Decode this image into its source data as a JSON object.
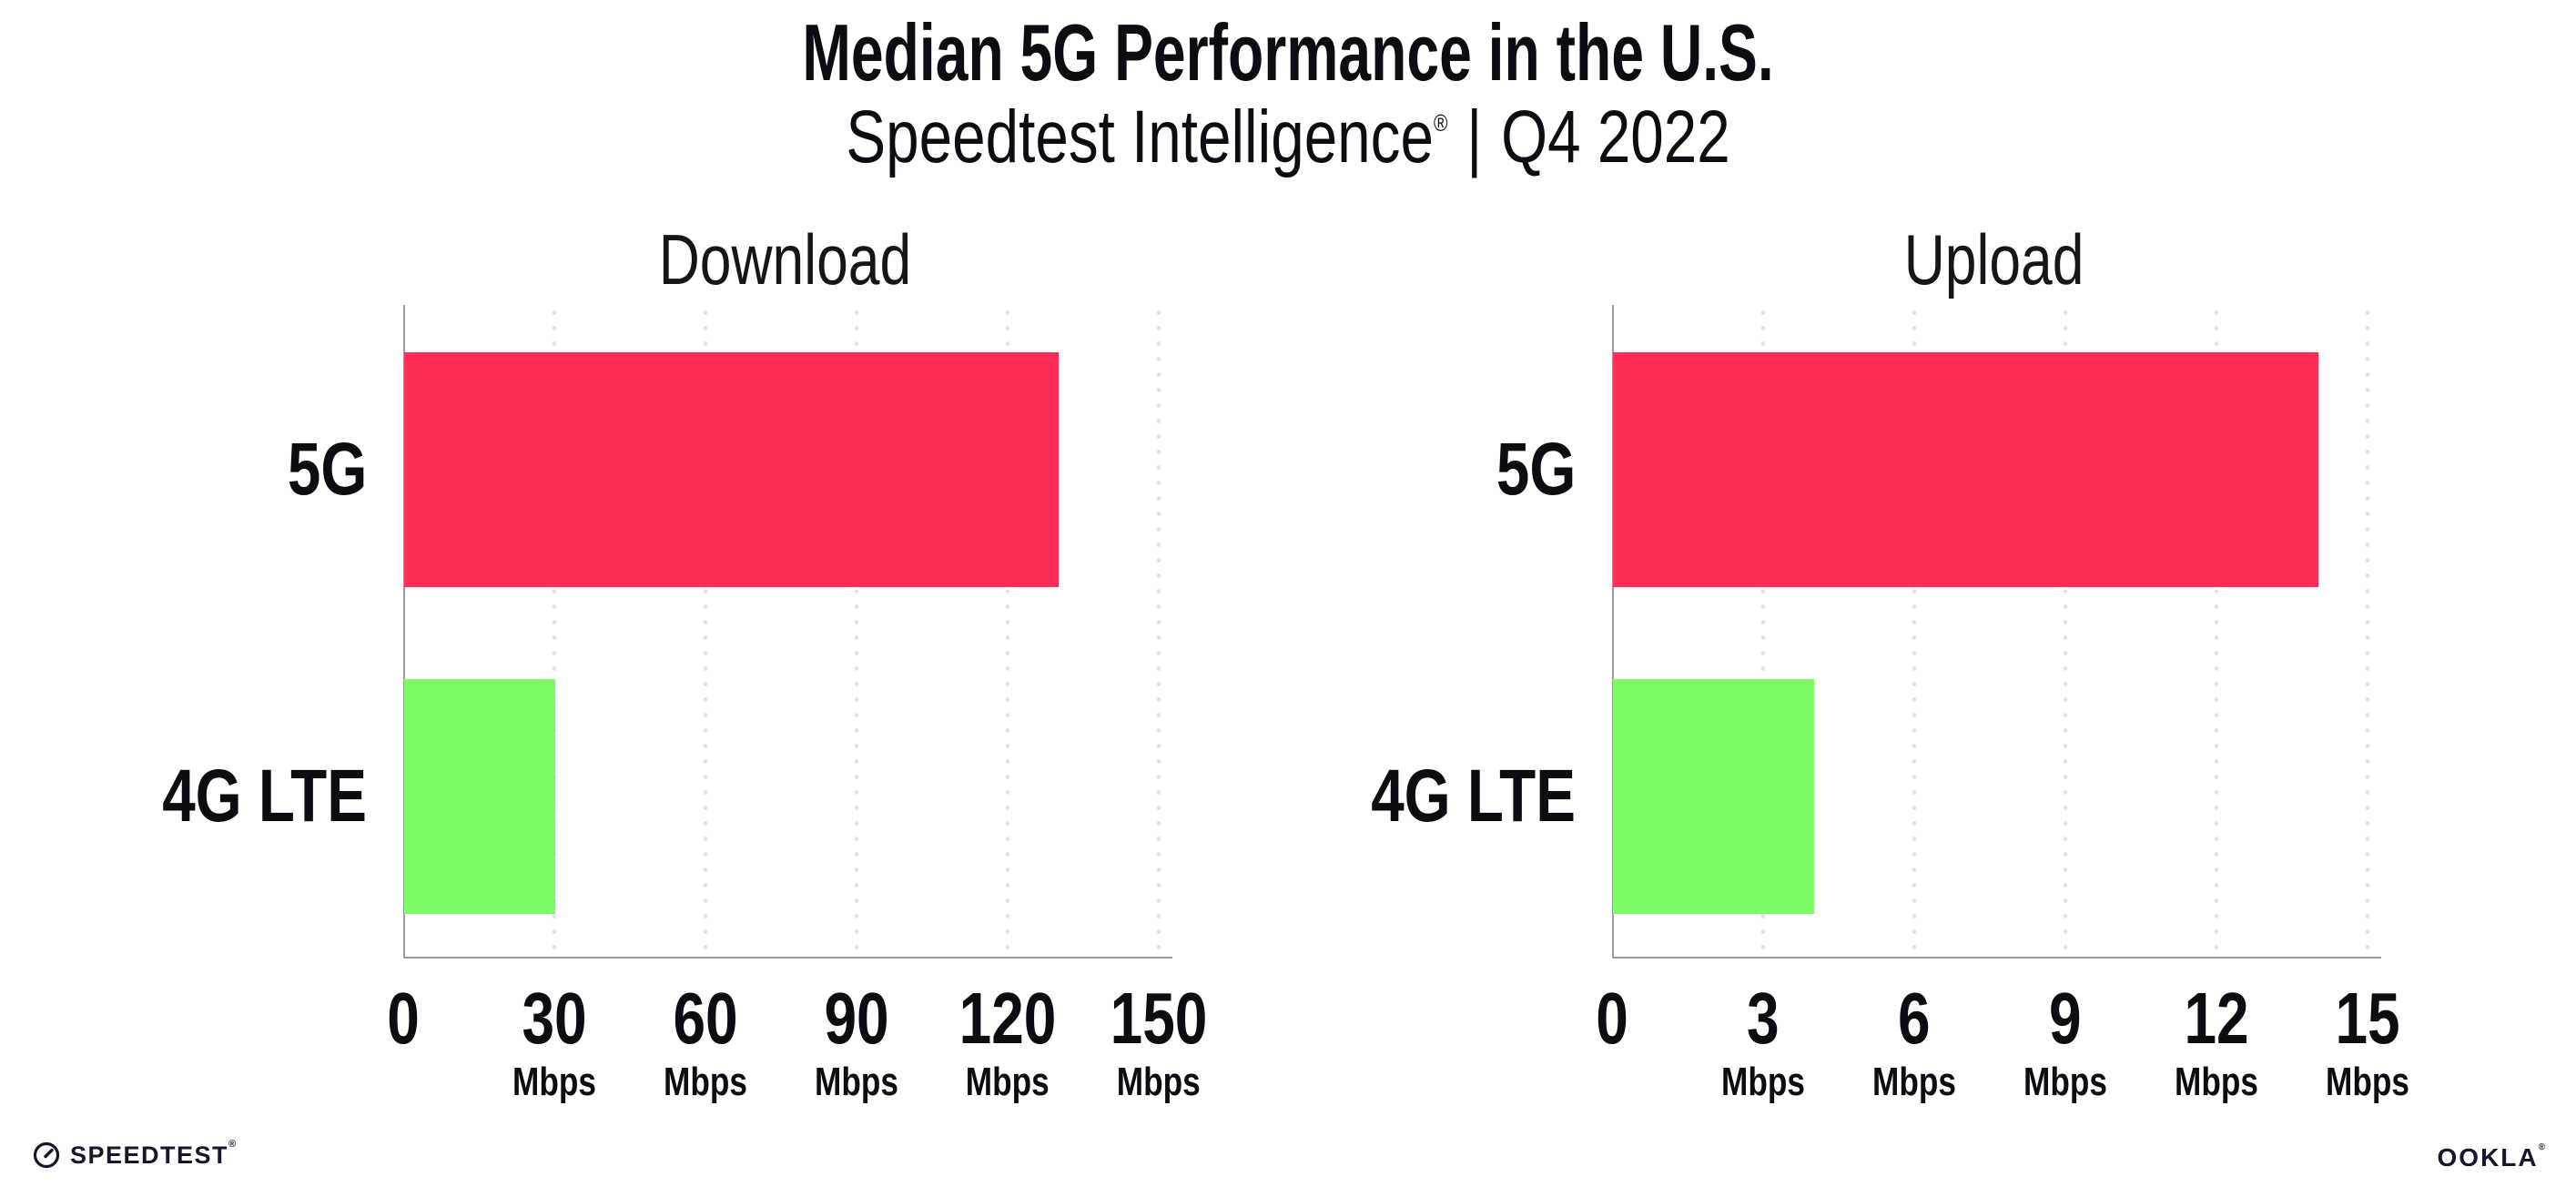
{
  "header": {
    "title": "Median 5G Performance in the U.S.",
    "subtitle_brand": "Speedtest Intelligence",
    "subtitle_reg": "®",
    "subtitle_pipe": "|",
    "subtitle_period": "Q4 2022"
  },
  "colors": {
    "bar_5g_pink": "#ff2e57",
    "bar_4g_green": "#7dfa66",
    "axis": "#9b9ba3",
    "grid_dot": "#e1e1ec",
    "text": "#0c0c12"
  },
  "chart_data": [
    {
      "type": "bar",
      "orientation": "horizontal",
      "title": "Download",
      "categories": [
        "5G",
        "4G LTE"
      ],
      "values": [
        130,
        30
      ],
      "unit": "Mbps",
      "xlim": [
        0,
        150
      ],
      "tick_values": [
        0,
        30,
        60,
        90,
        120,
        150
      ],
      "tick_units": [
        "",
        "Mbps",
        "Mbps",
        "Mbps",
        "Mbps",
        "Mbps"
      ],
      "bar_colors": [
        "#ff2e57",
        "#7dfa66"
      ],
      "grid": "dotted-vertical",
      "legend": "none"
    },
    {
      "type": "bar",
      "orientation": "horizontal",
      "title": "Upload",
      "categories": [
        "5G",
        "4G LTE"
      ],
      "values": [
        14,
        4
      ],
      "unit": "Mbps",
      "xlim": [
        0,
        15
      ],
      "tick_values": [
        0,
        3,
        6,
        9,
        12,
        15
      ],
      "tick_units": [
        "",
        "Mbps",
        "Mbps",
        "Mbps",
        "Mbps",
        "Mbps"
      ],
      "bar_colors": [
        "#ff2e57",
        "#7dfa66"
      ],
      "grid": "dotted-vertical",
      "legend": "none"
    }
  ],
  "footer": {
    "speedtest_label": "SPEEDTEST",
    "speedtest_reg": "®",
    "ookla_label": "OOKLA",
    "ookla_reg": "®"
  }
}
